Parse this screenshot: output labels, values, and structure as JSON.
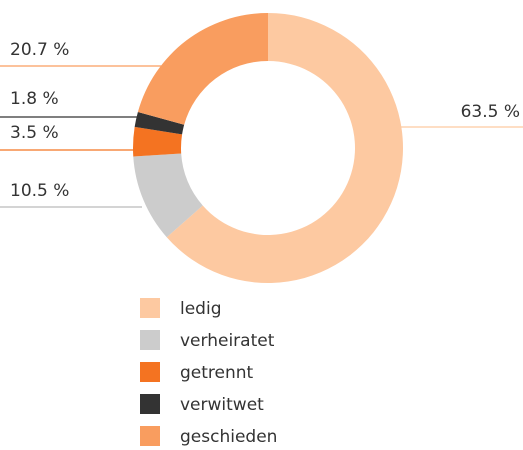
{
  "chart_data": {
    "type": "donut",
    "categories": [
      "ledig",
      "verheiratet",
      "getrennt",
      "verwitwet",
      "geschieden"
    ],
    "values": [
      63.5,
      10.5,
      3.5,
      1.8,
      20.7
    ],
    "value_labels": [
      "63.5 %",
      "10.5 %",
      "3.5 %",
      "1.8 %",
      "20.7 %"
    ],
    "colors": [
      "#fdc9a1",
      "#cccccc",
      "#f47321",
      "#333333",
      "#f99d5f"
    ]
  }
}
